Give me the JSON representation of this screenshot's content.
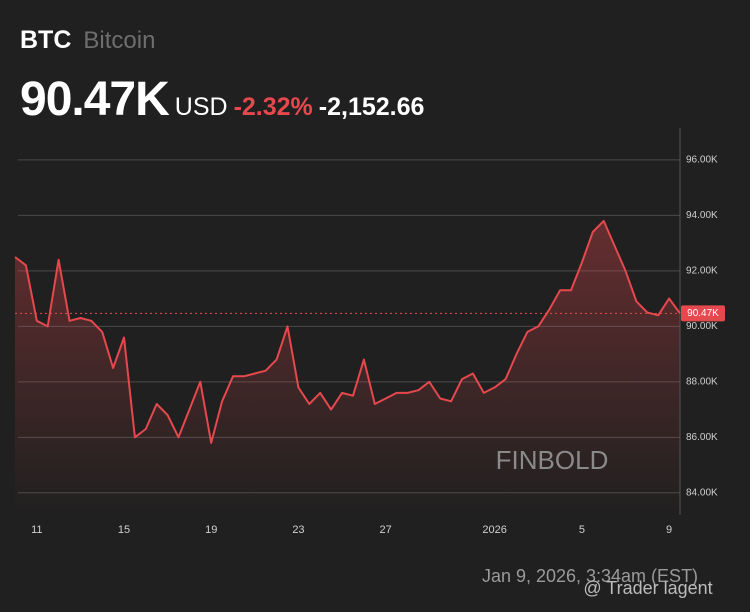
{
  "chart_data": {
    "type": "line",
    "title": "BTC",
    "subtitle": "Bitcoin",
    "price_label": "90.47K",
    "currency": "USD",
    "change_percent": "-2.32%",
    "change": "-2,152.66",
    "watermark": "FINBOLD",
    "timestamp": "Jan 9, 2026, 3:34am (EST)",
    "credit": "@ Trader lagent",
    "color": "#e5484d",
    "categories": [
      null,
      null,
      "11",
      null,
      null,
      null,
      null,
      null,
      null,
      null,
      "15",
      null,
      null,
      null,
      null,
      null,
      null,
      null,
      "19",
      null,
      null,
      null,
      null,
      null,
      null,
      null,
      "23",
      null,
      null,
      null,
      null,
      null,
      null,
      null,
      "27",
      null,
      null,
      null,
      null,
      null,
      null,
      null,
      null,
      null,
      "2026",
      null,
      null,
      null,
      null,
      null,
      null,
      null,
      "5",
      null,
      null,
      null,
      null,
      null,
      null,
      null,
      "9",
      null
    ],
    "values": [
      92.5,
      92.2,
      90.2,
      90.0,
      92.4,
      90.2,
      90.3,
      90.2,
      89.8,
      88.5,
      89.6,
      86.0,
      86.3,
      87.2,
      86.8,
      86.0,
      87.0,
      88.0,
      85.8,
      87.3,
      88.2,
      88.2,
      88.3,
      88.4,
      88.8,
      90.0,
      87.8,
      87.2,
      87.6,
      87.0,
      87.6,
      87.5,
      88.8,
      87.2,
      87.4,
      87.6,
      87.6,
      87.7,
      88.0,
      87.4,
      87.3,
      88.1,
      88.3,
      87.6,
      87.8,
      88.1,
      89.0,
      89.8,
      90.0,
      90.6,
      91.3,
      91.3,
      92.3,
      93.4,
      93.8,
      92.9,
      92.0,
      90.9,
      90.5,
      90.4,
      91.0,
      90.47
    ],
    "ylim": [
      83.2,
      97.15
    ],
    "yticks": [
      {
        "value": 84,
        "label": "84.00K"
      },
      {
        "value": 86,
        "label": "86.00K"
      },
      {
        "value": 88,
        "label": "88.00K"
      },
      {
        "value": 90,
        "label": "90.00K"
      },
      {
        "value": 92,
        "label": "92.00K"
      },
      {
        "value": 94,
        "label": "94.00K"
      },
      {
        "value": 96,
        "label": "96.00K"
      }
    ],
    "grid": true
  }
}
